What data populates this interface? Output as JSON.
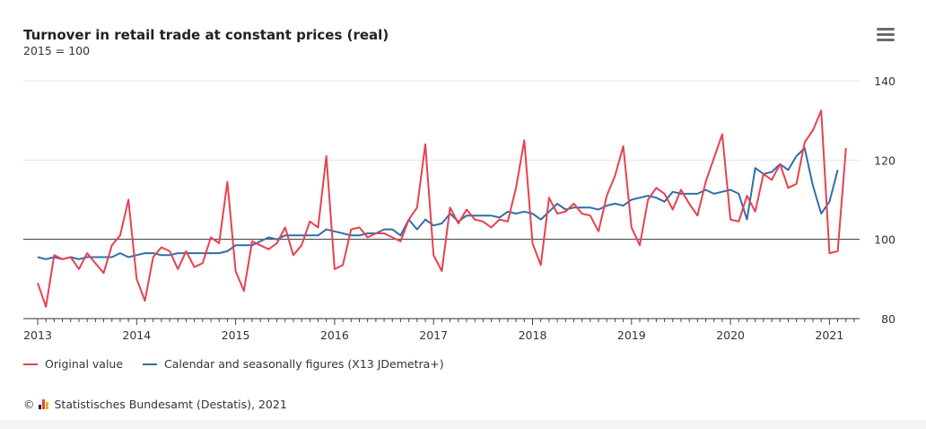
{
  "header": {
    "title": "Turnover in retail trade at constant prices (real)",
    "subtitle": "2015 = 100",
    "menu_icon": "hamburger-menu-icon"
  },
  "legend": {
    "items": [
      {
        "label": "Original value",
        "color": "#e8414f"
      },
      {
        "label": "Calendar and seasonally figures (X13 JDemetra+)",
        "color": "#2f6fa8"
      }
    ]
  },
  "source": {
    "copyright": "©",
    "text": "Statistisches Bundesamt (Destatis), 2021"
  },
  "chart_data": {
    "type": "line",
    "title": "Turnover in retail trade at constant prices (real)",
    "subtitle": "2015 = 100",
    "xlabel": "",
    "ylabel": "",
    "ylim": [
      80,
      140
    ],
    "yticks": [
      "80",
      "100",
      "120",
      "140"
    ],
    "xticks": [
      "2013",
      "2014",
      "2015",
      "2016",
      "2017",
      "2018",
      "2019",
      "2020",
      "2021"
    ],
    "reference_line": 100,
    "x_start": "2013-01",
    "frequency": "monthly",
    "series": [
      {
        "name": "Original value",
        "color": "#e8414f",
        "values": [
          89,
          83,
          96,
          95,
          95.5,
          92.5,
          96.5,
          94,
          91.5,
          98.5,
          101,
          110,
          90,
          84.5,
          95.5,
          98,
          97,
          92.5,
          97,
          93,
          94,
          100.5,
          99,
          114.5,
          92,
          87,
          99.5,
          98.5,
          97.5,
          99,
          103,
          96,
          98.5,
          104.5,
          103,
          121,
          92.5,
          93.5,
          102.5,
          103,
          100.5,
          101.5,
          101.5,
          100.5,
          99.5,
          105,
          108,
          124,
          96,
          92,
          108,
          104,
          107.5,
          105,
          104.5,
          103,
          105,
          104.5,
          113,
          125,
          99,
          93.5,
          110.5,
          106.5,
          107,
          109,
          106.5,
          106,
          102,
          111,
          116,
          123.5,
          103,
          98.5,
          110,
          113,
          111.5,
          107.5,
          112.5,
          109,
          106,
          114.5,
          120.5,
          126.5,
          105,
          104.5,
          111,
          107,
          116.5,
          115,
          119,
          113,
          114,
          124.5,
          127.5,
          132.5,
          96.5,
          97,
          123
        ]
      },
      {
        "name": "Calendar and seasonally figures (X13 JDemetra+)",
        "color": "#2f6fa8",
        "values": [
          95.5,
          95,
          95.5,
          95,
          95.5,
          95,
          95.5,
          95.5,
          95.5,
          95.5,
          96.5,
          95.5,
          96,
          96.5,
          96.5,
          96,
          96,
          96.5,
          96.5,
          96.5,
          96.5,
          96.5,
          96.5,
          97,
          98.5,
          98.5,
          98.5,
          99.5,
          100.5,
          100,
          101,
          101,
          101,
          101,
          101,
          102.5,
          102,
          101.5,
          101,
          101,
          101.5,
          101.5,
          102.5,
          102.5,
          101,
          105,
          102.5,
          105,
          103.5,
          104,
          106.5,
          104.5,
          106,
          106,
          106,
          106,
          105.5,
          107,
          106.5,
          107,
          106.5,
          105,
          107,
          109,
          107.5,
          108,
          108,
          108,
          107.5,
          108.5,
          109,
          108.5,
          110,
          110.5,
          111,
          110.5,
          109.5,
          112,
          111.5,
          111.5,
          111.5,
          112.5,
          111.5,
          112,
          112.5,
          111.5,
          105,
          118,
          116.5,
          117,
          119,
          117.5,
          121,
          123,
          113.5,
          106.5,
          109.5,
          117.5
        ]
      }
    ]
  }
}
